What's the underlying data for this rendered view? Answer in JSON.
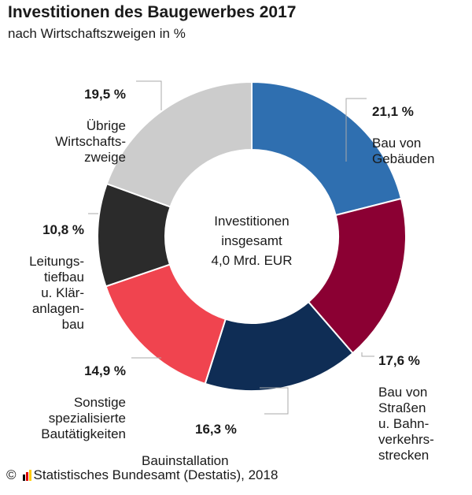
{
  "chart_data": {
    "type": "pie",
    "style": "donut",
    "title": "Investitionen des Baugewerbes 2017",
    "subtitle": "nach Wirtschaftszweigen in %",
    "center_label": "Investitionen\ninsgesamt\n4,0 Mrd. EUR",
    "slices": [
      {
        "label": "Bau von\nGebäuden",
        "value": 21.1,
        "value_label": "21,1 %",
        "color": "#2f6fb0"
      },
      {
        "label": "Bau von\nStraßen\nu. Bahn-\nverkehrs-\nstrecken",
        "value": 17.6,
        "value_label": "17,6 %",
        "color": "#8b0033"
      },
      {
        "label": "Bauinstallation",
        "value": 16.3,
        "value_label": "16,3 %",
        "color": "#0f2d55"
      },
      {
        "label": "Sonstige\nspezialisierte\nBautätigkeiten",
        "value": 14.9,
        "value_label": "14,9 %",
        "color": "#f0444f"
      },
      {
        "label": "Leitungs-\ntiefbau\nu. Klär-\nanlagen-\nbau",
        "value": 10.8,
        "value_label": "10,8 %",
        "color": "#2b2b2b"
      },
      {
        "label": "Übrige\nWirtschafts-\nzweige",
        "value": 19.5,
        "value_label": "19,5 %",
        "color": "#cccccc"
      }
    ]
  },
  "footer": {
    "copyright": "©",
    "source": "Statistisches Bundesamt (Destatis), 2018",
    "logo_colors": [
      "#000000",
      "#dd0000",
      "#ffcc00"
    ]
  }
}
